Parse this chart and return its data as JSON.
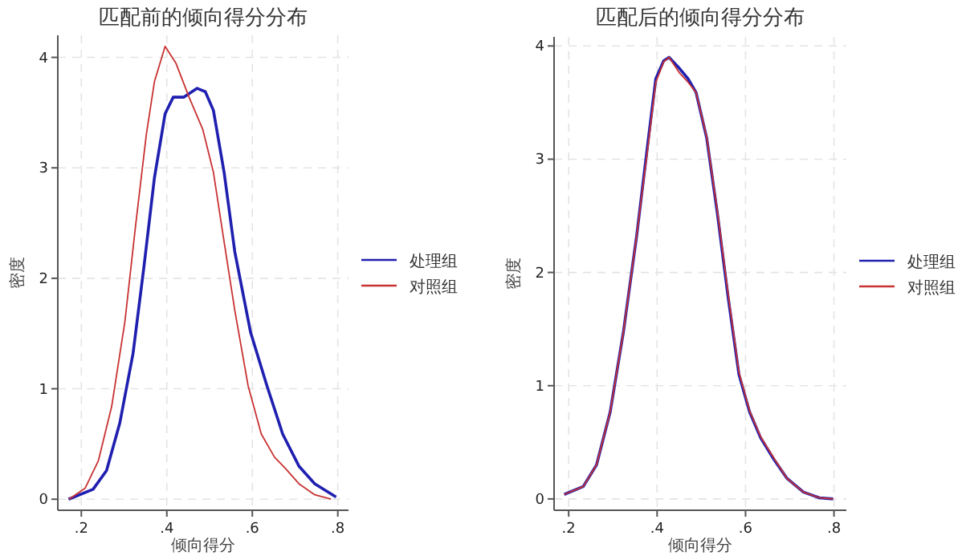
{
  "chart_data": [
    {
      "type": "line",
      "title": "匹配前的倾向得分分布",
      "xlabel": "倾向得分",
      "ylabel": "密度",
      "xlim": [
        0.145,
        0.825
      ],
      "ylim": [
        -0.1,
        4.2
      ],
      "xticks": [
        {
          "value": 0.2,
          "label": ".2"
        },
        {
          "value": 0.4,
          "label": ".4"
        },
        {
          "value": 0.6,
          "label": ".6"
        },
        {
          "value": 0.8,
          "label": ".8"
        }
      ],
      "yticks": [
        0,
        1,
        2,
        3,
        4
      ],
      "grid": true,
      "legend": "right",
      "series": [
        {
          "name": "处理组",
          "color": "#1f1fb0",
          "x": [
            0.17,
            0.2275,
            0.259,
            0.29,
            0.321,
            0.346,
            0.371,
            0.396,
            0.415,
            0.44,
            0.471,
            0.49,
            0.509,
            0.534,
            0.559,
            0.596,
            0.634,
            0.671,
            0.709,
            0.746,
            0.796
          ],
          "values": [
            0,
            0.09,
            0.26,
            0.69,
            1.32,
            2.09,
            2.91,
            3.49,
            3.64,
            3.64,
            3.72,
            3.69,
            3.52,
            2.96,
            2.24,
            1.51,
            1.03,
            0.59,
            0.3,
            0.14,
            0.02
          ]
        },
        {
          "name": "对照组",
          "color": "#c83232",
          "x": [
            0.171,
            0.209,
            0.24,
            0.271,
            0.302,
            0.327,
            0.352,
            0.371,
            0.396,
            0.421,
            0.452,
            0.484,
            0.509,
            0.534,
            0.559,
            0.59,
            0.621,
            0.652,
            0.677,
            0.709,
            0.746,
            0.784
          ],
          "values": [
            0,
            0.1,
            0.35,
            0.84,
            1.61,
            2.48,
            3.3,
            3.78,
            4.1,
            3.95,
            3.64,
            3.35,
            2.96,
            2.33,
            1.71,
            1.03,
            0.59,
            0.38,
            0.28,
            0.14,
            0.04,
            0
          ]
        }
      ]
    },
    {
      "type": "line",
      "title": "匹配后的倾向得分分布",
      "xlabel": "倾向得分",
      "ylabel": "密度",
      "xlim": [
        0.167,
        0.828
      ],
      "ylim": [
        -0.1,
        4.08
      ],
      "xticks": [
        {
          "value": 0.2,
          "label": ".2"
        },
        {
          "value": 0.4,
          "label": ".4"
        },
        {
          "value": 0.6,
          "label": ".6"
        },
        {
          "value": 0.8,
          "label": ".8"
        }
      ],
      "yticks": [
        0,
        1,
        2,
        3,
        4
      ],
      "grid": true,
      "legend": "right",
      "series": [
        {
          "name": "处理组",
          "color": "#1f1fb0",
          "x": [
            0.19,
            0.233,
            0.263,
            0.294,
            0.324,
            0.354,
            0.379,
            0.397,
            0.415,
            0.427,
            0.451,
            0.47,
            0.488,
            0.512,
            0.536,
            0.561,
            0.585,
            0.609,
            0.634,
            0.664,
            0.694,
            0.731,
            0.767,
            0.798
          ],
          "values": [
            0.04,
            0.11,
            0.3,
            0.77,
            1.48,
            2.33,
            3.14,
            3.71,
            3.87,
            3.9,
            3.8,
            3.71,
            3.59,
            3.19,
            2.53,
            1.77,
            1.1,
            0.77,
            0.54,
            0.35,
            0.18,
            0.06,
            0.01,
            0
          ]
        },
        {
          "name": "对照组",
          "color": "#c83232",
          "x": [
            0.19,
            0.233,
            0.263,
            0.294,
            0.324,
            0.354,
            0.379,
            0.397,
            0.415,
            0.427,
            0.451,
            0.47,
            0.488,
            0.512,
            0.536,
            0.561,
            0.585,
            0.609,
            0.634,
            0.664,
            0.694,
            0.731,
            0.767,
            0.798
          ],
          "values": [
            0.04,
            0.11,
            0.3,
            0.77,
            1.48,
            2.33,
            3.1,
            3.68,
            3.86,
            3.9,
            3.76,
            3.68,
            3.59,
            3.2,
            2.55,
            1.8,
            1.12,
            0.78,
            0.55,
            0.36,
            0.18,
            0.06,
            0.01,
            0
          ]
        }
      ]
    }
  ]
}
